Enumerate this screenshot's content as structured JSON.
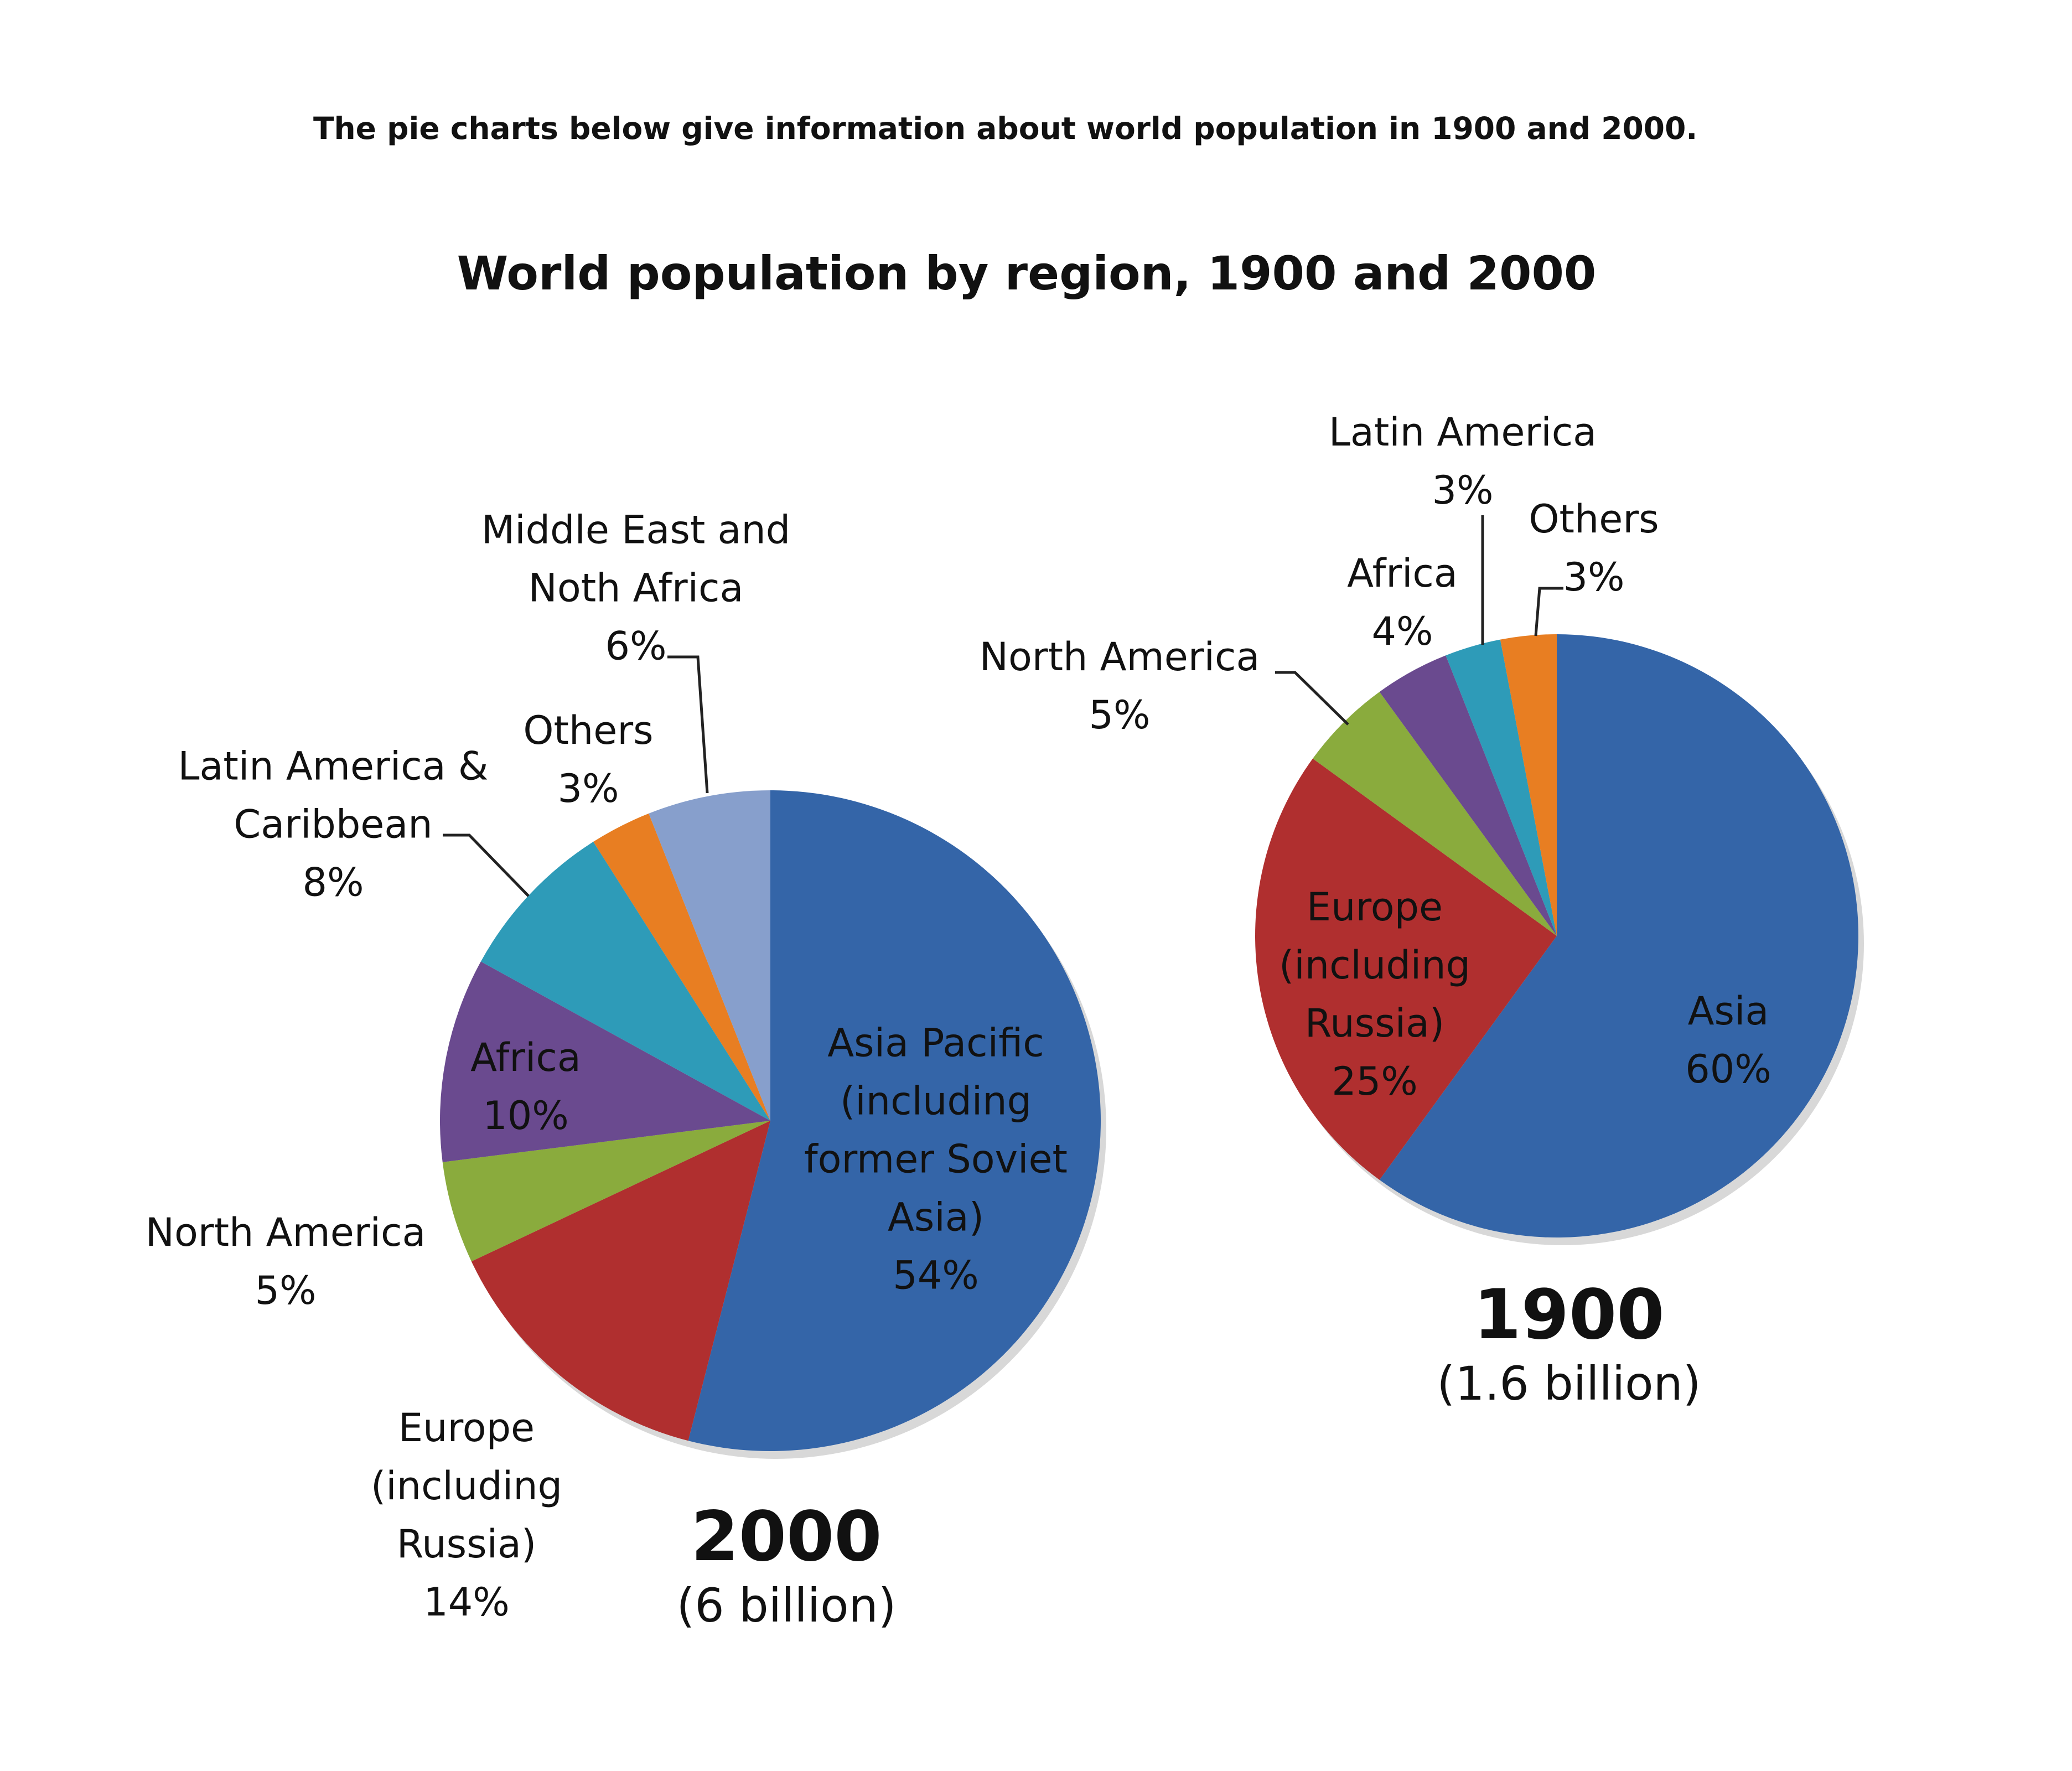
{
  "intro": "The pie charts below give information about world population in 1900 and 2000.",
  "chart_data": [
    {
      "type": "pie",
      "title": "World population by region, 1900  and 2000",
      "year": "2000",
      "total": "(6 billion)",
      "slices": [
        {
          "label": "Asia Pacific (including former Soviet Asia)",
          "lines": [
            "Asia Pacific",
            "(including",
            "former Soviet",
            "Asia)"
          ],
          "value": 54,
          "pct": "54%",
          "color": "#3465a8"
        },
        {
          "label": "Europe (including Russia)",
          "lines": [
            "Europe",
            "(including",
            "Russia)"
          ],
          "value": 14,
          "pct": "14%",
          "color": "#b02f2f"
        },
        {
          "label": "North America",
          "lines": [
            "North America"
          ],
          "value": 5,
          "pct": "5%",
          "color": "#8aab3d"
        },
        {
          "label": "Africa",
          "lines": [
            "Africa"
          ],
          "value": 10,
          "pct": "10%",
          "color": "#6a4a8f"
        },
        {
          "label": "Latin America & Caribbean",
          "lines": [
            "Latin America &",
            "Caribbean"
          ],
          "value": 8,
          "pct": "8%",
          "color": "#2e9bb8"
        },
        {
          "label": "Others",
          "lines": [
            "Others"
          ],
          "value": 3,
          "pct": "3%",
          "color": "#e87e22"
        },
        {
          "label": "Middle East and Noth Africa",
          "lines": [
            "Middle East  and",
            "Noth Africa"
          ],
          "value": 6,
          "pct": "6%",
          "color": "#879fcc"
        }
      ]
    },
    {
      "type": "pie",
      "year": "1900",
      "total": "(1.6 billion)",
      "slices": [
        {
          "label": "Asia",
          "lines": [
            "Asia"
          ],
          "value": 60,
          "pct": "60%",
          "color": "#3465a8"
        },
        {
          "label": "Europe (including Russia)",
          "lines": [
            "Europe",
            "(including",
            "Russia)"
          ],
          "value": 25,
          "pct": "25%",
          "color": "#b02f2f"
        },
        {
          "label": "North America",
          "lines": [
            "North America"
          ],
          "value": 5,
          "pct": "5%",
          "color": "#8aab3d"
        },
        {
          "label": "Africa",
          "lines": [
            "Africa"
          ],
          "value": 4,
          "pct": "4%",
          "color": "#6a4a8f"
        },
        {
          "label": "Latin America",
          "lines": [
            "Latin America"
          ],
          "value": 3,
          "pct": "3%",
          "color": "#2e9bb8"
        },
        {
          "label": "Others",
          "lines": [
            "Others"
          ],
          "value": 3,
          "pct": "3%",
          "color": "#e87e22"
        }
      ]
    }
  ]
}
